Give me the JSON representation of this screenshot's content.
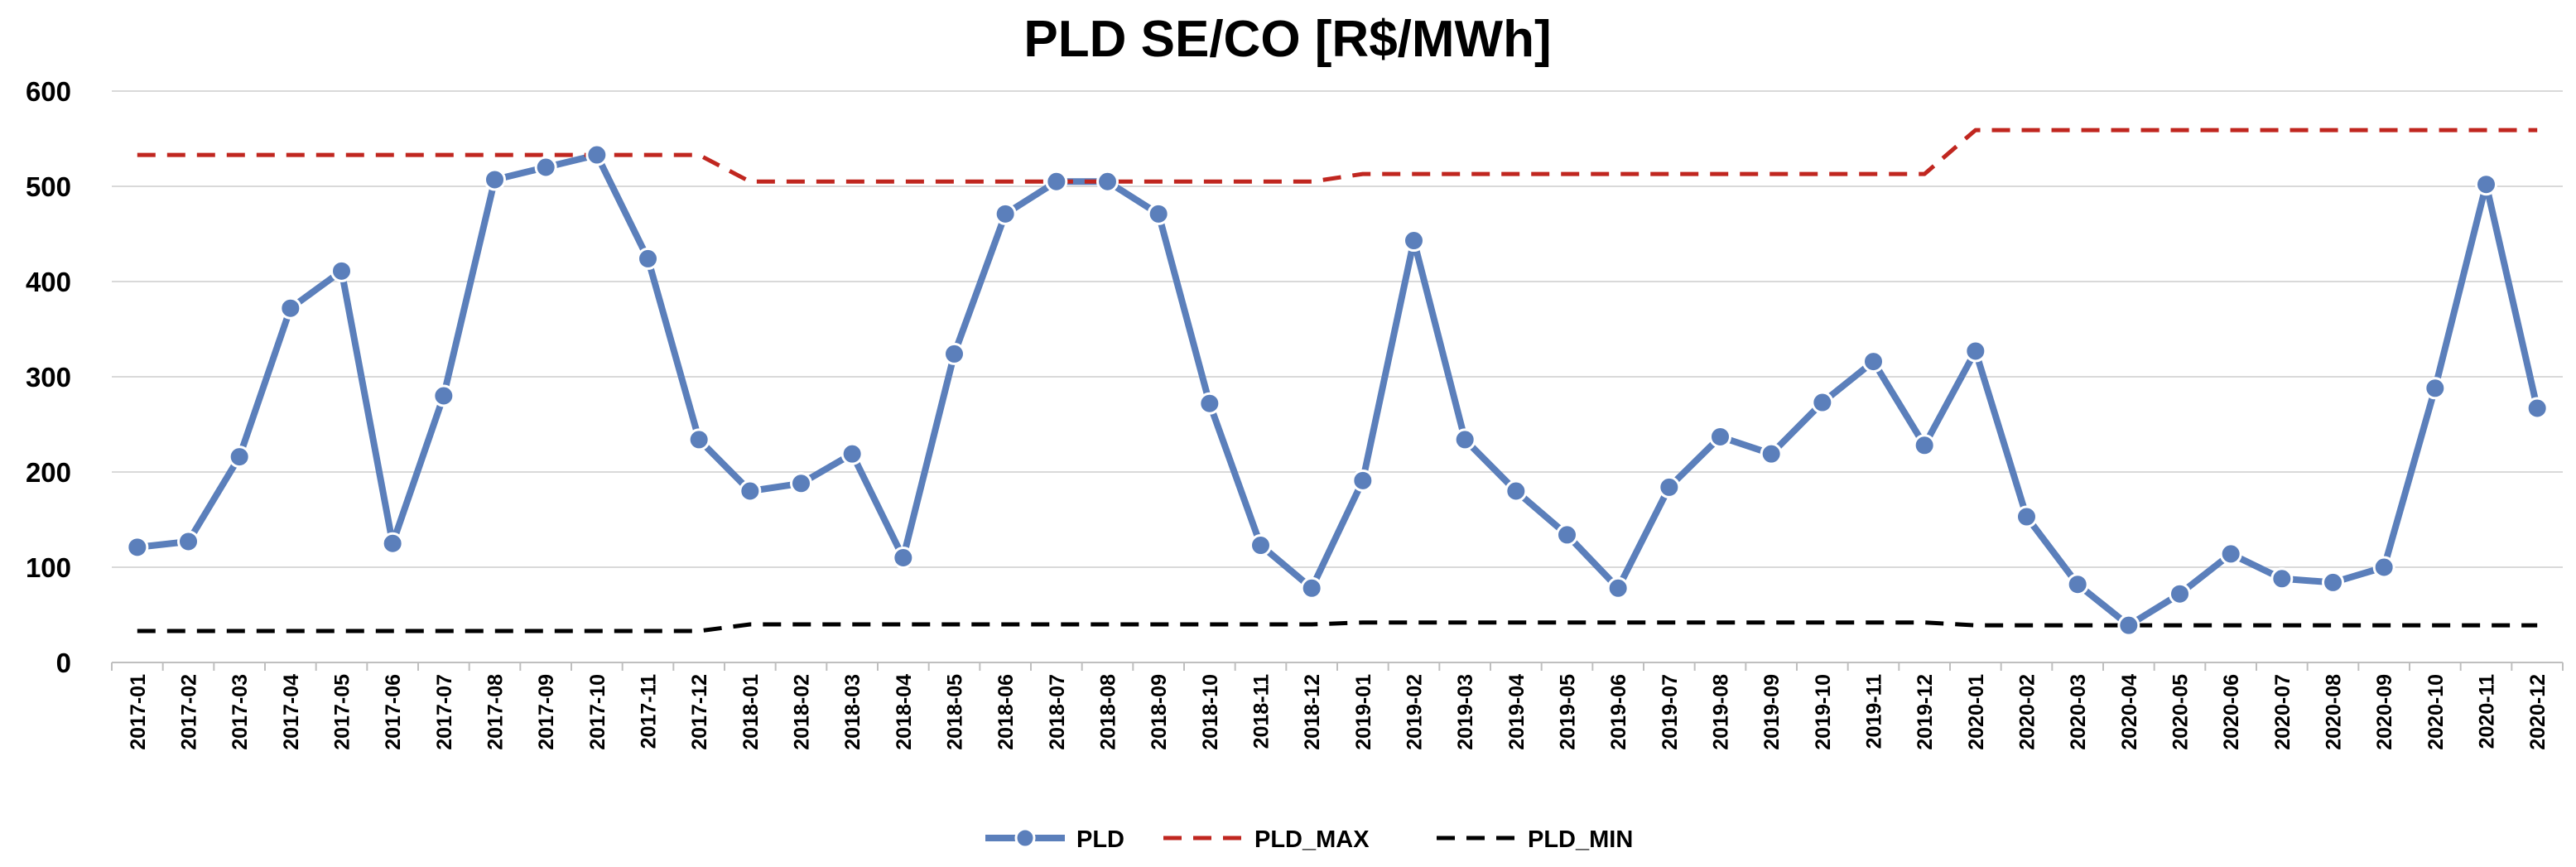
{
  "chart_data": {
    "type": "line",
    "title": "PLD SE/CO [R$/MWh]",
    "xlabel": "",
    "ylabel": "",
    "ylim": [
      0,
      600
    ],
    "yticks": [
      0,
      100,
      200,
      300,
      400,
      500,
      600
    ],
    "grid": true,
    "legend_position": "bottom",
    "categories": [
      "2017-01",
      "2017-02",
      "2017-03",
      "2017-04",
      "2017-05",
      "2017-06",
      "2017-07",
      "2017-08",
      "2017-09",
      "2017-10",
      "2017-11",
      "2017-12",
      "2018-01",
      "2018-02",
      "2018-03",
      "2018-04",
      "2018-05",
      "2018-06",
      "2018-07",
      "2018-08",
      "2018-09",
      "2018-10",
      "2018-11",
      "2018-12",
      "2019-01",
      "2019-02",
      "2019-03",
      "2019-04",
      "2019-05",
      "2019-06",
      "2019-07",
      "2019-08",
      "2019-09",
      "2019-10",
      "2019-11",
      "2019-12",
      "2020-01",
      "2020-02",
      "2020-03",
      "2020-04",
      "2020-05",
      "2020-06",
      "2020-07",
      "2020-08",
      "2020-09",
      "2020-10",
      "2020-11",
      "2020-12"
    ],
    "series": [
      {
        "name": "PLD",
        "color": "#5b7fbb",
        "style": "solid-markers",
        "values": [
          121,
          127,
          216,
          372,
          411,
          125,
          280,
          507,
          520,
          533,
          424,
          234,
          180,
          188,
          219,
          110,
          324,
          471,
          505,
          505,
          471,
          272,
          123,
          78,
          191,
          443,
          234,
          180,
          134,
          78,
          184,
          237,
          219,
          273,
          316,
          228,
          327,
          153,
          82,
          39,
          72,
          114,
          88,
          84,
          100,
          288,
          502,
          267
        ]
      },
      {
        "name": "PLD_MAX",
        "color": "#c0261f",
        "style": "dashed",
        "values": [
          533,
          533,
          533,
          533,
          533,
          533,
          533,
          533,
          533,
          533,
          533,
          533,
          505,
          505,
          505,
          505,
          505,
          505,
          505,
          505,
          505,
          505,
          505,
          505,
          513,
          513,
          513,
          513,
          513,
          513,
          513,
          513,
          513,
          513,
          513,
          513,
          559,
          559,
          559,
          559,
          559,
          559,
          559,
          559,
          559,
          559,
          559,
          559
        ]
      },
      {
        "name": "PLD_MIN",
        "color": "#000000",
        "style": "dashed",
        "values": [
          33,
          33,
          33,
          33,
          33,
          33,
          33,
          33,
          33,
          33,
          33,
          33,
          40,
          40,
          40,
          40,
          40,
          40,
          40,
          40,
          40,
          40,
          40,
          40,
          42,
          42,
          42,
          42,
          42,
          42,
          42,
          42,
          42,
          42,
          42,
          42,
          39,
          39,
          39,
          39,
          39,
          39,
          39,
          39,
          39,
          39,
          39,
          39
        ]
      }
    ]
  }
}
